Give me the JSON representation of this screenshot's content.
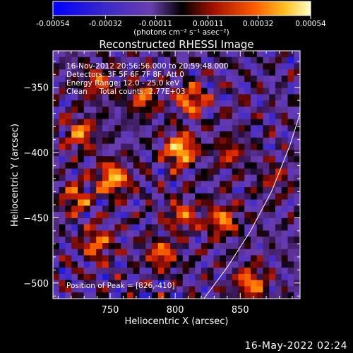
{
  "chart_data": {
    "type": "heatmap",
    "title": "Reconstructed RHESSI Image",
    "xlabel": "Heliocentric X (arcsec)",
    "ylabel": "Heliocentric Y (arcsec)",
    "xlim": [
      706,
      896
    ],
    "ylim": [
      -512,
      -322
    ],
    "x_ticks": [
      750,
      800,
      850
    ],
    "y_ticks": [
      -350,
      -400,
      -450,
      -500
    ],
    "colorbar": {
      "units": "(photons cm⁻² s⁻¹ asec⁻²)",
      "range": [
        -0.00054,
        0.00054
      ],
      "tick_values": [
        -0.00054,
        -0.00032,
        -0.00011,
        0.00011,
        0.00032,
        0.00054
      ],
      "tick_labels": [
        "-0.00054",
        "-0.00032",
        "-0.00011",
        "0.00011",
        "0.00032",
        "0.00054"
      ]
    },
    "annotations": [
      "16-Nov-2012 20:56:56.000 to 20:59:48.000",
      "Detectors: 3F 5F 6F 7F 8F, Att 0",
      "Energy Range: 12.0 - 25.0 keV",
      "Clean     Total counts: 2.77E+03"
    ],
    "peak_label": "Position of Peak = [826,-410]",
    "peak_position": [
      826,
      -410
    ],
    "limb_curve": [
      [
        822,
        -512
      ],
      [
        840,
        -488
      ],
      [
        858,
        -460
      ],
      [
        874,
        -430
      ],
      [
        888,
        -395
      ],
      [
        896,
        -370
      ]
    ],
    "bright_regions": [
      {
        "x": 804,
        "y": -398,
        "level": 1.0
      },
      {
        "x": 752,
        "y": -420,
        "level": 0.9
      },
      {
        "x": 812,
        "y": -360,
        "level": 0.7
      },
      {
        "x": 727,
        "y": -385,
        "level": 0.65
      },
      {
        "x": 740,
        "y": -470,
        "level": 0.6
      },
      {
        "x": 790,
        "y": -478,
        "level": 0.6
      },
      {
        "x": 836,
        "y": -452,
        "level": 0.65
      },
      {
        "x": 806,
        "y": -448,
        "level": 0.55
      },
      {
        "x": 775,
        "y": -358,
        "level": 0.55
      },
      {
        "x": 740,
        "y": -346,
        "level": 0.5
      },
      {
        "x": 842,
        "y": -400,
        "level": 0.4
      },
      {
        "x": 858,
        "y": -500,
        "level": 0.7
      },
      {
        "x": 876,
        "y": -420,
        "level": 0.3
      },
      {
        "x": 724,
        "y": -435,
        "level": 0.55
      }
    ],
    "colors": {
      "background": "#000000",
      "low": "#1a1aff",
      "mid_low": "#6a3fd0",
      "zero": "#000000",
      "mid_high": "#d02010",
      "high": "#ffffa0"
    }
  },
  "footer": {
    "timestamp": "16-May-2022 02:24"
  }
}
